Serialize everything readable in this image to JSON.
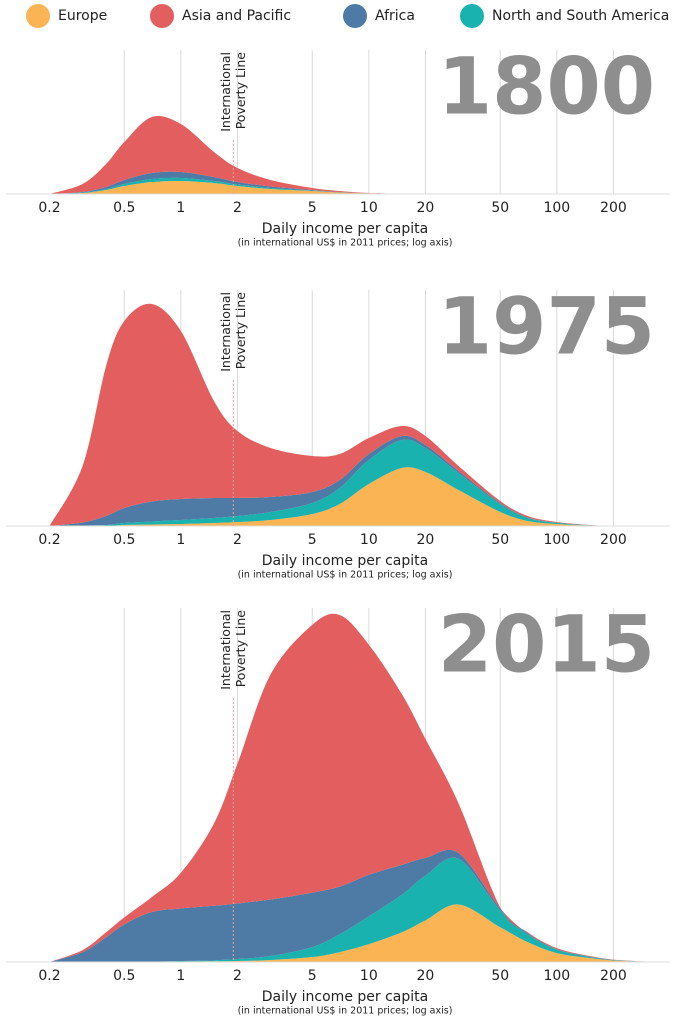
{
  "chart_data": [
    {
      "type": "stacked_area",
      "title": "1800",
      "x_label": "Daily income per capita",
      "x_sublabel": "(in international US$ in 2011 prices; log axis)",
      "annotation": [
        "International",
        "Poverty Line"
      ],
      "poverty_line": 1.9,
      "log_x": true,
      "xlim": [
        0.15,
        400
      ],
      "ylim": [
        0,
        144
      ],
      "xticks": [
        0.2,
        0.5,
        1,
        2,
        5,
        10,
        20,
        50,
        100,
        200
      ],
      "x": [
        0.2,
        0.3,
        0.4,
        0.5,
        0.7,
        1,
        1.5,
        2,
        3,
        5,
        7,
        10,
        15,
        20,
        30,
        50,
        70,
        100,
        150,
        200,
        300
      ],
      "series": [
        {
          "name": "Europe",
          "color": "#fbb454",
          "values": [
            0,
            1,
            4,
            8,
            12,
            13,
            11,
            8,
            5,
            3,
            1.5,
            0.7,
            0.2,
            0,
            0,
            0,
            0,
            0,
            0,
            0,
            0
          ]
        },
        {
          "name": "Asia and Pacific",
          "color": "#e35e5e",
          "values": [
            0,
            8,
            23,
            38,
            56,
            48,
            25,
            14,
            6.5,
            2,
            1,
            0.3,
            0.1,
            0,
            0,
            0,
            0,
            0,
            0,
            0,
            0
          ]
        },
        {
          "name": "Africa",
          "color": "#4e7aa6",
          "values": [
            0,
            0.5,
            2,
            4,
            6,
            6,
            4,
            2.5,
            1.5,
            0.5,
            0.3,
            0,
            0,
            0,
            0,
            0,
            0,
            0,
            0,
            0,
            0
          ]
        },
        {
          "name": "North and South America",
          "color": "#1ab2ae",
          "values": [
            0,
            0.5,
            1,
            2,
            3,
            3,
            2,
            1.5,
            1,
            0.5,
            0.2,
            0,
            0,
            0,
            0,
            0,
            0,
            0,
            0,
            0,
            0
          ]
        }
      ]
    },
    {
      "type": "stacked_area",
      "title": "1975",
      "x_label": "Daily income per capita",
      "x_sublabel": "(in international US$ in 2011 prices; log axis)",
      "annotation": [
        "International",
        "Poverty Line"
      ],
      "poverty_line": 1.9,
      "log_x": true,
      "xlim": [
        0.15,
        400
      ],
      "ylim": [
        0,
        236
      ],
      "xticks": [
        0.2,
        0.5,
        1,
        2,
        5,
        10,
        20,
        50,
        100,
        200
      ],
      "x": [
        0.2,
        0.3,
        0.4,
        0.5,
        0.7,
        1,
        1.5,
        2,
        3,
        5,
        7,
        10,
        15,
        20,
        30,
        50,
        70,
        100,
        150,
        200,
        300
      ],
      "series": [
        {
          "name": "Europe",
          "color": "#fbb454",
          "values": [
            0,
            0,
            0,
            1,
            1.5,
            2,
            3,
            4,
            6,
            12,
            22,
            42,
            58,
            54,
            36,
            14,
            5,
            2,
            0.5,
            0,
            0
          ]
        },
        {
          "name": "Asia and Pacific",
          "color": "#e35e5e",
          "values": [
            0,
            56.5,
            150,
            187,
            197.5,
            168,
            97,
            67,
            49,
            36,
            26,
            16,
            10,
            9,
            5,
            2,
            1.5,
            0.6,
            0.2,
            0,
            0
          ]
        },
        {
          "name": "Africa",
          "color": "#4e7aa6",
          "values": [
            0,
            3,
            9,
            15,
            20,
            21,
            20,
            18,
            15,
            11,
            8,
            6,
            4,
            3,
            2,
            1,
            0.5,
            0.2,
            0,
            0,
            0
          ]
        },
        {
          "name": "North and South America",
          "color": "#1ab2ae",
          "values": [
            0,
            0.5,
            1,
            2,
            3,
            4,
            5,
            6,
            8,
            11,
            16,
            24,
            28,
            24,
            17,
            8,
            3,
            1.2,
            0.3,
            0,
            0
          ]
        }
      ]
    },
    {
      "type": "stacked_area",
      "title": "2015",
      "x_label": "Daily income per capita",
      "x_sublabel": "(in international US$ in 2011 prices; log axis)",
      "annotation": [
        "International",
        "Poverty Line"
      ],
      "poverty_line": 1.9,
      "log_x": true,
      "xlim": [
        0.15,
        400
      ],
      "ylim": [
        0,
        357
      ],
      "xticks": [
        0.2,
        0.5,
        1,
        2,
        5,
        10,
        20,
        50,
        100,
        200
      ],
      "x": [
        0.2,
        0.3,
        0.4,
        0.5,
        0.7,
        1,
        1.5,
        2,
        3,
        5,
        7,
        10,
        15,
        20,
        30,
        50,
        70,
        100,
        150,
        200,
        300
      ],
      "series": [
        {
          "name": "Europe",
          "color": "#fbb454",
          "values": [
            0,
            0,
            0,
            0,
            0.2,
            0.5,
            0.7,
            1,
            2,
            5,
            10,
            18,
            30,
            42,
            58,
            35,
            20,
            9,
            4,
            1.5,
            0.2
          ]
        },
        {
          "name": "Asia and Pacific",
          "color": "#e35e5e",
          "values": [
            0,
            2,
            5,
            7,
            15,
            36,
            83,
            141,
            227,
            270,
            274,
            232,
            172,
            120,
            50,
            1,
            1,
            1,
            0.6,
            0.3,
            0.1
          ]
        },
        {
          "name": "Africa",
          "color": "#4e7aa6",
          "values": [
            0,
            10,
            25,
            38,
            50,
            53,
            55,
            56,
            57,
            55,
            48,
            42,
            30,
            18,
            6,
            2,
            1,
            0.5,
            0.2,
            0.1,
            0
          ]
        },
        {
          "name": "North and South America",
          "color": "#1ab2ae",
          "values": [
            0,
            0,
            0,
            0,
            0.2,
            0.5,
            1,
            2,
            4,
            10,
            18,
            28,
            38,
            45,
            46,
            17,
            8,
            3.5,
            1.2,
            0.5,
            0.1
          ]
        }
      ]
    }
  ]
}
